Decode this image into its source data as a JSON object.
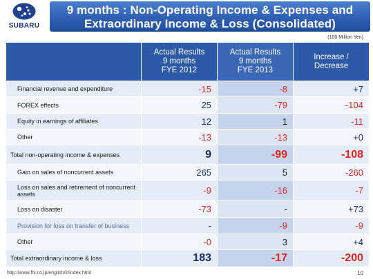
{
  "logo": {
    "text": "SUBARU"
  },
  "title": {
    "line1": "9 months : Non-Operating Income & Expenses and",
    "line2": "Extraordinary Income & Loss  (Consolidated)"
  },
  "unit": "(100 Million Yen)",
  "columns": [
    {
      "lines": [
        "Actual Results",
        "9 months",
        "FYE 2012"
      ]
    },
    {
      "lines": [
        "Actual Results",
        "9 months",
        "FYE 2013"
      ]
    },
    {
      "lines": [
        "Increase /",
        "Decrease"
      ]
    }
  ],
  "rows": [
    {
      "label": "Financial revenue and expenditure",
      "values": [
        "-15",
        "-8",
        "+7"
      ]
    },
    {
      "label": "FOREX effects",
      "values": [
        "25",
        "-79",
        "-104"
      ]
    },
    {
      "label": "Equity in earnings of affiliates",
      "values": [
        "12",
        "1",
        "-11"
      ]
    },
    {
      "label": "Other",
      "values": [
        "-13",
        "-13",
        "+0"
      ]
    },
    {
      "label": "Total non-operating income & expenses",
      "values": [
        "9",
        "-99",
        "-108"
      ]
    },
    {
      "label": "Gain on sales of noncurrent assets",
      "values": [
        "265",
        "5",
        "-260"
      ]
    },
    {
      "label": "Loss on sales and retirement of noncurrent assets",
      "values": [
        "-9",
        "-16",
        "-7"
      ]
    },
    {
      "label": "Loss on disaster",
      "values": [
        "-73",
        "-",
        "+73"
      ]
    },
    {
      "label": "Provision for loss on transfer of business",
      "values": [
        "-",
        "-9",
        "-9"
      ]
    },
    {
      "label": "Other",
      "values": [
        "-0",
        "3",
        "+4"
      ]
    },
    {
      "label": "Total extraordinary income & loss",
      "values": [
        "183",
        "-17",
        "-200"
      ]
    }
  ],
  "colors": {
    "header_blue": "#2c5aa8",
    "negative": "#e0251b",
    "positive": "#1b2f66"
  },
  "footer": {
    "url": "http://www.fhi.co.jp/english/ir/index.html",
    "page": "10"
  }
}
